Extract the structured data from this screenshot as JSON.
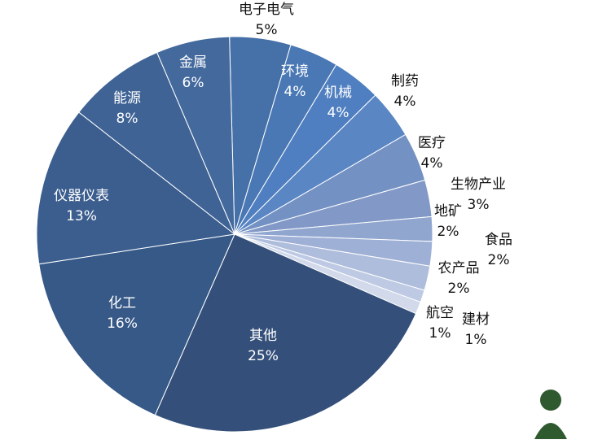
{
  "chart_data": {
    "type": "pie",
    "categories": [
      "电子电气",
      "环境",
      "机械",
      "制药",
      "医疗",
      "生物产业",
      "地矿",
      "食品",
      "农产品",
      "航空",
      "建材",
      "其他",
      "化工",
      "仪器仪表",
      "能源",
      "金属"
    ],
    "values": [
      5,
      4,
      4,
      4,
      4,
      3,
      2,
      2,
      2,
      1,
      1,
      25,
      16,
      13,
      8,
      6
    ],
    "value_labels": [
      "5%",
      "4%",
      "4%",
      "4%",
      "4%",
      "3%",
      "2%",
      "2%",
      "2%",
      "1%",
      "1%",
      "25%",
      "16%",
      "13%",
      "8%",
      "6%"
    ],
    "colors": [
      "#4570a8",
      "#4a78b5",
      "#4f7fc0",
      "#5a86c4",
      "#7391c3",
      "#8299c8",
      "#90a6cf",
      "#9fb0d6",
      "#afbddc",
      "#bec9e3",
      "#d1d9ea",
      "#34507a",
      "#375987",
      "#3b5e8f",
      "#3f6395",
      "#44699d"
    ]
  }
}
